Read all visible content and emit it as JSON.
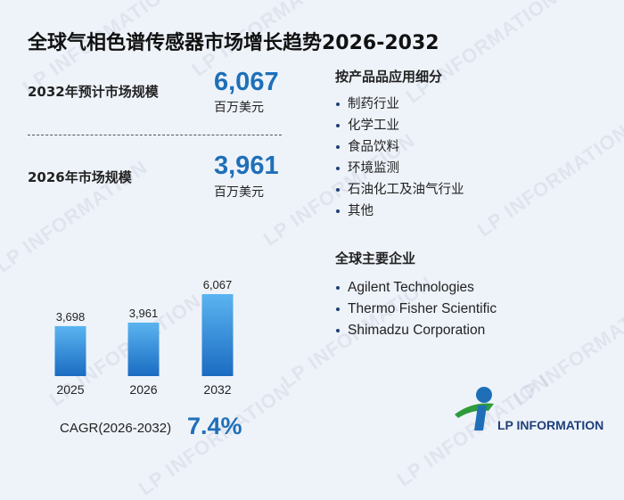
{
  "title": "全球气相色谱传感器市场增长趋势2026-2032",
  "stats": {
    "forecast_label": "2032年预计市场规模",
    "forecast_value": "6,067",
    "forecast_unit": "百万美元",
    "base_label": "2026年市场规模",
    "base_value": "3,961",
    "base_unit": "百万美元"
  },
  "cagr": {
    "label": "CAGR(2026-2032)",
    "value": "7.4%"
  },
  "segments": {
    "title": "按产品品应用细分",
    "items": [
      "制药行业",
      "化学工业",
      "食品饮料",
      "环境监测",
      "石油化工及油气行业",
      "其他"
    ]
  },
  "companies": {
    "title": "全球主要企业",
    "items": [
      "Agilent Technologies",
      "Thermo Fisher Scientific",
      "Shimadzu Corporation"
    ]
  },
  "logo": {
    "text": "LP INFORMATION",
    "color_green": "#2e9b3c",
    "color_blue": "#1f6fb8"
  },
  "watermark": {
    "text": "LP INFORMATION"
  },
  "chart_data": {
    "type": "bar",
    "categories": [
      "2025",
      "2026",
      "2032"
    ],
    "values": [
      3698,
      3961,
      6067
    ],
    "value_labels": [
      "3,698",
      "3,961",
      "6,067"
    ],
    "title": "",
    "xlabel": "",
    "ylabel": "",
    "ylim": [
      0,
      6067
    ],
    "grid": false,
    "colors": {
      "bar_top": "#5bb4f0",
      "bar_bottom": "#1a6cc2"
    }
  }
}
